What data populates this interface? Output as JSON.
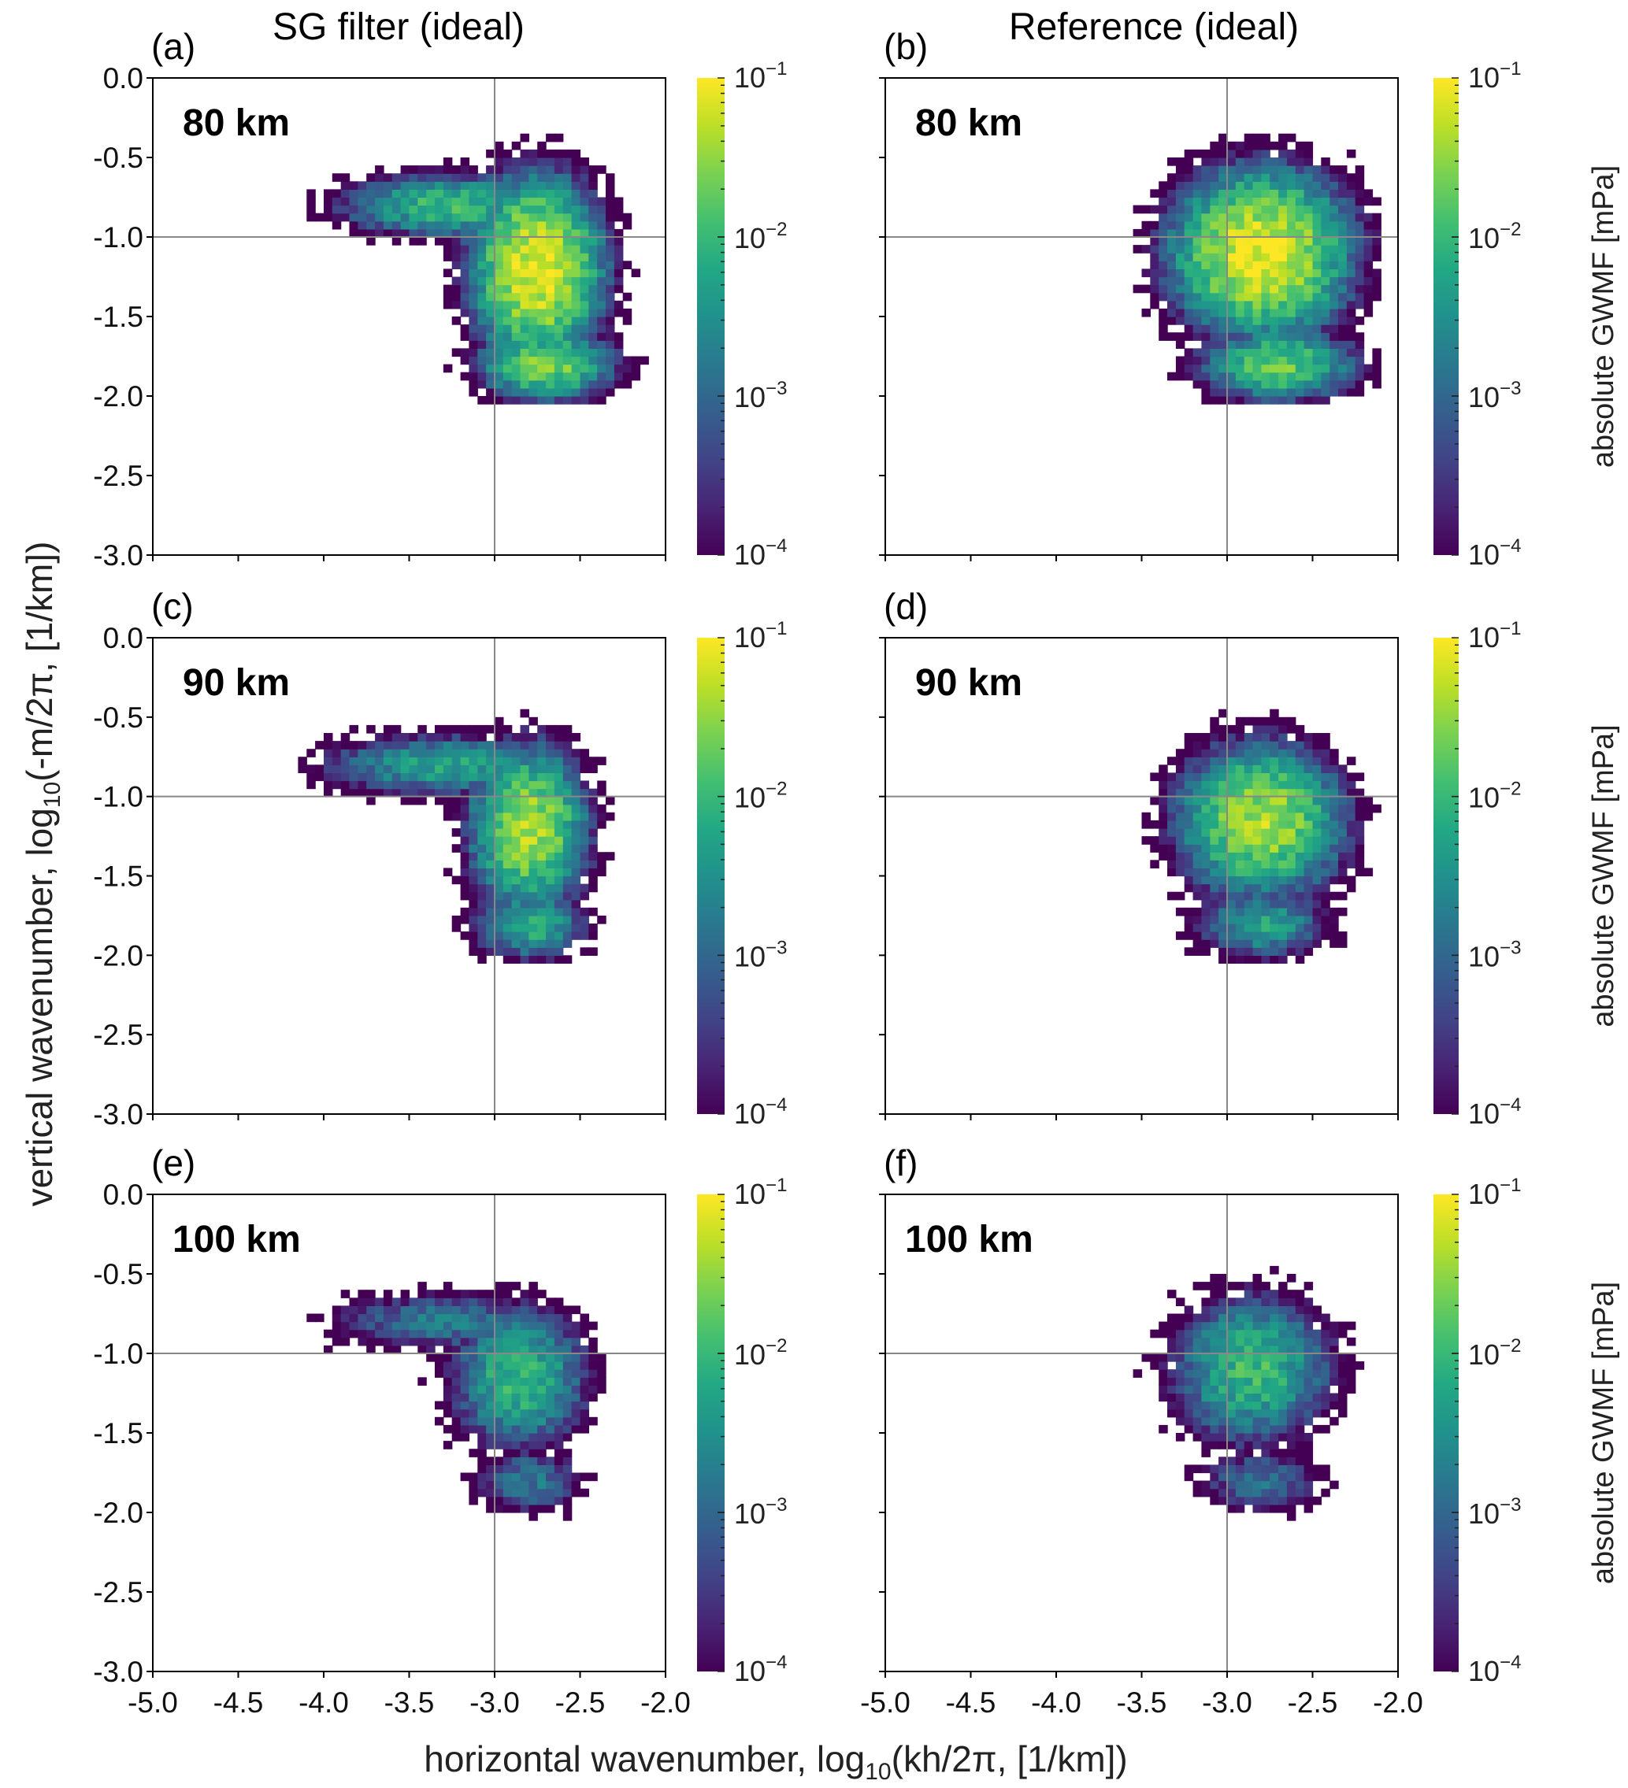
{
  "figure": {
    "xlabel": "horizontal wavenumber, log10(kh/2π, [1/km])",
    "xlabel_parts": {
      "pre": "horizontal wavenumber, log",
      "sub": "10",
      "post": "(kh/2π, [1/km])"
    },
    "ylabel_parts": {
      "pre": "vertical wavenumber, log",
      "sub": "10",
      "post": "(-m/2π, [1/km])"
    },
    "colorbar_label": "absolute GWMF [mPa]",
    "column_titles": [
      "SG filter (ideal)",
      "Reference (ideal)"
    ]
  },
  "chart_data": [
    {
      "panel": "(a)",
      "annotation": "80 km",
      "type": "heatmap",
      "seed": 11,
      "components": [
        {
          "x": -2.75,
          "y": -1.2,
          "sx": 0.33,
          "sy": 0.5,
          "peak_log": -1.1
        },
        {
          "x": -3.25,
          "y": -0.8,
          "sx": 0.6,
          "sy": 0.18,
          "peak_log": -2.0
        },
        {
          "x": -2.7,
          "y": -1.8,
          "sx": 0.35,
          "sy": 0.2,
          "peak_log": -1.6
        }
      ]
    },
    {
      "panel": "(b)",
      "annotation": "80 km",
      "type": "heatmap",
      "seed": 22,
      "components": [
        {
          "x": -2.8,
          "y": -1.1,
          "sx": 0.45,
          "sy": 0.45,
          "peak_log": -1.1
        },
        {
          "x": -2.7,
          "y": -1.8,
          "sx": 0.4,
          "sy": 0.2,
          "peak_log": -1.7
        }
      ]
    },
    {
      "panel": "(c)",
      "annotation": "90 km",
      "type": "heatmap",
      "seed": 33,
      "components": [
        {
          "x": -2.8,
          "y": -1.2,
          "sx": 0.3,
          "sy": 0.45,
          "peak_log": -1.4
        },
        {
          "x": -3.3,
          "y": -0.8,
          "sx": 0.65,
          "sy": 0.18,
          "peak_log": -2.3
        },
        {
          "x": -2.8,
          "y": -1.8,
          "sx": 0.3,
          "sy": 0.2,
          "peak_log": -2.1
        }
      ]
    },
    {
      "panel": "(d)",
      "annotation": "90 km",
      "type": "heatmap",
      "seed": 44,
      "components": [
        {
          "x": -2.8,
          "y": -1.15,
          "sx": 0.42,
          "sy": 0.42,
          "peak_log": -1.4
        },
        {
          "x": -2.8,
          "y": -1.8,
          "sx": 0.35,
          "sy": 0.2,
          "peak_log": -2.3
        }
      ]
    },
    {
      "panel": "(e)",
      "annotation": "100 km",
      "type": "heatmap",
      "seed": 55,
      "components": [
        {
          "x": -2.85,
          "y": -1.15,
          "sx": 0.35,
          "sy": 0.4,
          "peak_log": -2.0
        },
        {
          "x": -3.3,
          "y": -0.8,
          "sx": 0.65,
          "sy": 0.18,
          "peak_log": -2.8
        },
        {
          "x": -2.8,
          "y": -1.8,
          "sx": 0.3,
          "sy": 0.2,
          "peak_log": -2.8
        }
      ]
    },
    {
      "panel": "(f)",
      "annotation": "100 km",
      "type": "heatmap",
      "seed": 66,
      "components": [
        {
          "x": -2.85,
          "y": -1.1,
          "sx": 0.42,
          "sy": 0.42,
          "peak_log": -2.0
        },
        {
          "x": -2.8,
          "y": -1.8,
          "sx": 0.35,
          "sy": 0.2,
          "peak_log": -2.9
        }
      ]
    }
  ],
  "axes": {
    "xlim": [
      -5.0,
      -2.0
    ],
    "ylim": [
      -3.0,
      0.0
    ],
    "xticks": [
      "-5.0",
      "-4.5",
      "-4.0",
      "-3.5",
      "-3.0",
      "-2.5",
      "-2.0"
    ],
    "yticks": [
      "0.0",
      "-0.5",
      "-1.0",
      "-1.5",
      "-2.0",
      "-2.5",
      "-3.0"
    ],
    "reference_lines": {
      "x": -3.0,
      "y": -1.0
    },
    "bin_size": 0.05
  },
  "colorbar": {
    "scale": "log",
    "range": [
      0.0001,
      0.1
    ],
    "ticks": [
      {
        "base": "10",
        "exp": "−1"
      },
      {
        "base": "10",
        "exp": "−2"
      },
      {
        "base": "10",
        "exp": "−3"
      },
      {
        "base": "10",
        "exp": "−4"
      }
    ],
    "colormap": [
      "#440154",
      "#482475",
      "#414487",
      "#355f8d",
      "#2a788e",
      "#21918c",
      "#22a884",
      "#44bf70",
      "#7ad151",
      "#bddf26",
      "#fde725"
    ]
  },
  "colors": {
    "reference_line": "#888888",
    "axis": "#000000"
  }
}
